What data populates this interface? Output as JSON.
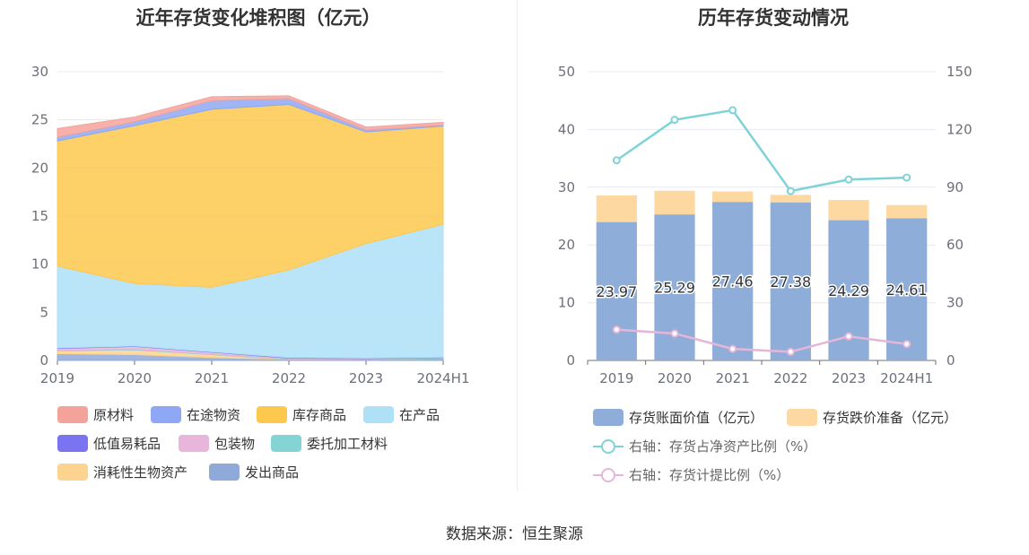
{
  "chart_data": [
    {
      "type": "area",
      "title": "近年存货变化堆积图（亿元）",
      "categories": [
        "2019",
        "2020",
        "2021",
        "2022",
        "2023",
        "2024H1"
      ],
      "ylim": [
        0,
        30
      ],
      "yticks": [
        "0",
        "5",
        "10",
        "15",
        "20",
        "25",
        "30"
      ],
      "stacked": true,
      "grid": true,
      "legend_position": "bottom",
      "series": [
        {
          "name": "原材料",
          "color": "#f4a39b",
          "values": [
            0.9,
            0.5,
            0.4,
            0.3,
            0.3,
            0.3
          ]
        },
        {
          "name": "在途物资",
          "color": "#8ea8f5",
          "values": [
            0.4,
            0.4,
            0.9,
            0.6,
            0.2,
            0.1
          ]
        },
        {
          "name": "库存商品",
          "color": "#fdc84e",
          "values": [
            13.0,
            16.4,
            18.5,
            17.2,
            11.6,
            10.2
          ]
        },
        {
          "name": "在产品",
          "color": "#aee1f8",
          "values": [
            8.5,
            6.5,
            6.7,
            9.1,
            11.9,
            13.8
          ]
        },
        {
          "name": "低值易耗品",
          "color": "#7b74f0",
          "values": [
            0.05,
            0.05,
            0.05,
            0.05,
            0.05,
            0.05
          ]
        },
        {
          "name": "包装物",
          "color": "#e8b6db",
          "values": [
            0.2,
            0.3,
            0.2,
            0.1,
            0.05,
            0.05
          ]
        },
        {
          "name": "委托加工材料",
          "color": "#84d4d6",
          "values": [
            0.05,
            0.05,
            0.05,
            0.05,
            0.05,
            0.05
          ]
        },
        {
          "name": "消耗性生物资产",
          "color": "#fdd48f",
          "values": [
            0.3,
            0.5,
            0.3,
            0.0,
            0.0,
            0.0
          ]
        },
        {
          "name": "发出商品",
          "color": "#8fa9d8",
          "values": [
            0.7,
            0.6,
            0.3,
            0.1,
            0.1,
            0.2
          ]
        }
      ]
    },
    {
      "type": "bar",
      "title": "历年存货变动情况",
      "categories": [
        "2019",
        "2020",
        "2021",
        "2022",
        "2023",
        "2024H1"
      ],
      "ylim": [
        0,
        50
      ],
      "yticks": [
        "0",
        "10",
        "20",
        "30",
        "40",
        "50"
      ],
      "y2lim": [
        0,
        150
      ],
      "y2ticks": [
        "0",
        "30",
        "60",
        "90",
        "120",
        "150"
      ],
      "stacked": true,
      "grid": true,
      "legend_position": "bottom",
      "series": [
        {
          "name": "存货账面价值（亿元）",
          "color": "#8fadd9",
          "axis": "left",
          "type": "bar",
          "values": [
            23.97,
            25.29,
            27.46,
            27.38,
            24.29,
            24.61
          ],
          "labels": [
            "23.97",
            "25.29",
            "27.46",
            "27.38",
            "24.29",
            "24.61"
          ]
        },
        {
          "name": "存货跌价准备（亿元）",
          "color": "#fdd9a1",
          "axis": "left",
          "type": "bar",
          "values": [
            4.6,
            4.1,
            1.8,
            1.3,
            3.5,
            2.3
          ]
        },
        {
          "name": "右轴：存货占净资产比例（%）",
          "color": "#7fd3d8",
          "axis": "right",
          "type": "line",
          "values": [
            104,
            125,
            130,
            88,
            94,
            95
          ]
        },
        {
          "name": "右轴：存货计提比例（%）",
          "color": "#e6b6d9",
          "axis": "right",
          "type": "line",
          "values": [
            16,
            14,
            6,
            4.5,
            12.5,
            8.5
          ]
        }
      ]
    }
  ],
  "source_text": "数据来源：恒生聚源"
}
